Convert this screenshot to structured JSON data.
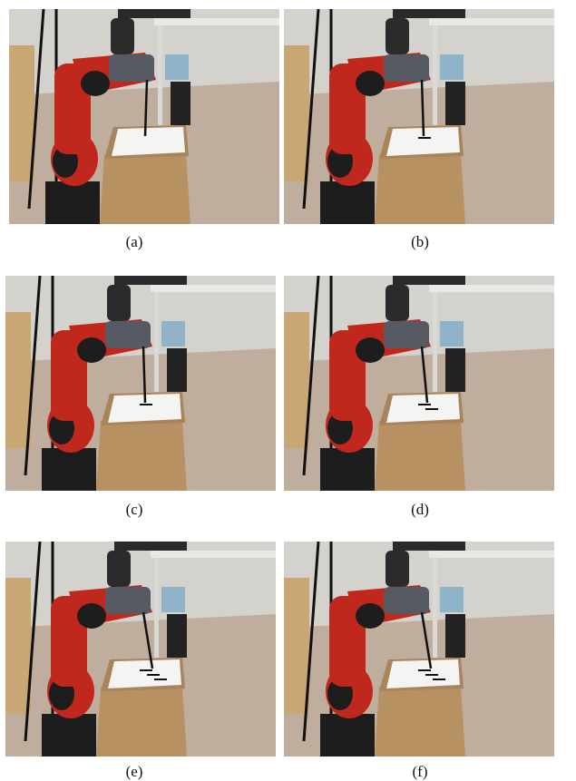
{
  "figure": {
    "panels": [
      {
        "label": "(a)",
        "scene": "robot-arm-writing-step-1",
        "marks": 0
      },
      {
        "label": "(b)",
        "scene": "robot-arm-writing-step-2",
        "marks": 1
      },
      {
        "label": "(c)",
        "scene": "robot-arm-writing-step-3",
        "marks": 1
      },
      {
        "label": "(d)",
        "scene": "robot-arm-writing-step-4",
        "marks": 2
      },
      {
        "label": "(e)",
        "scene": "robot-arm-writing-step-5",
        "marks": 3
      },
      {
        "label": "(f)",
        "scene": "robot-arm-writing-step-6",
        "marks": 3
      }
    ],
    "colors": {
      "robot_red": "#c0281d",
      "robot_dark": "#1d1d1d",
      "floor": "#bfae9e",
      "wall": "#d4d2cc",
      "box": "#b89163",
      "paper": "#f4f4f2"
    }
  }
}
